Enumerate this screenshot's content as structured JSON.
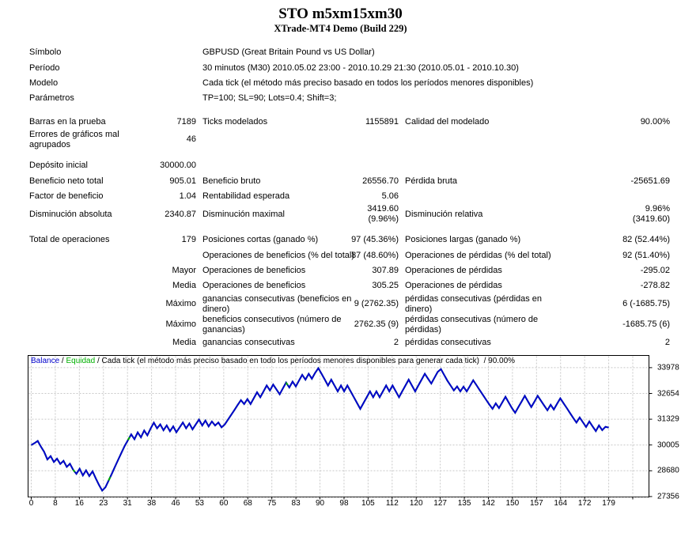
{
  "report": {
    "title": "STO m5xm15xm30",
    "subtitle": "XTrade-MT4 Demo (Build 229)"
  },
  "info_rows": [
    {
      "label": "Símbolo",
      "value": "GBPUSD (Great Britain Pound vs US Dollar)"
    },
    {
      "label": "Período",
      "value": "30 minutos (M30) 2010.05.02 23:00 - 2010.10.29 21:30 (2010.05.01 - 2010.10.30)"
    },
    {
      "label": "Modelo",
      "value": "Cada tick (el método más preciso basado en todos los períodos menores disponibles)"
    },
    {
      "label": "Parámetros",
      "value": "TP=100; SL=90; Lots=0.4; Shift=3;"
    }
  ],
  "stat_rows": [
    {
      "gap": true,
      "l1": "Barras en la prueba",
      "v1": "7189",
      "l2": "Ticks modelados",
      "v2": "1155891",
      "l3": "Calidad del modelado",
      "v3": "90.00%"
    },
    {
      "l1": "Errores de gráficos mal agrupados",
      "v1": "46"
    },
    {
      "gap": true,
      "l1": "Depósito inicial",
      "v1": "30000.00"
    },
    {
      "l1": "Beneficio neto total",
      "v1": "905.01",
      "l2": "Beneficio bruto",
      "v2": "26556.70",
      "l3": "Pérdida bruta",
      "v3": "-25651.69"
    },
    {
      "l1": "Factor de beneficio",
      "v1": "1.04",
      "l2": "Rentabilidad esperada",
      "v2": "5.06"
    },
    {
      "l1": "Disminución absoluta",
      "v1": "2340.87",
      "l2": "Disminución maximal",
      "v2": "3419.60\n(9.96%)",
      "l3": "Disminución relativa",
      "v3": "9.96%\n(3419.60)"
    },
    {
      "gap": true,
      "l1": "Total de operaciones",
      "v1": "179",
      "l2": "Posiciones cortas (ganado %)",
      "v2": "97 (45.36%)",
      "l3": "Posiciones largas (ganado %)",
      "v3": "82 (52.44%)"
    },
    {
      "l2": "Operaciones de beneficios (% del total)",
      "v2": "87 (48.60%)",
      "l3": "Operaciones de pérdidas (% del total)",
      "v3": "92 (51.40%)"
    },
    {
      "v1": "Mayor",
      "l2": "Operaciones de beneficios",
      "v2": "307.89",
      "l3": "Operaciones de pérdidas",
      "v3": "-295.02"
    },
    {
      "v1": "Media",
      "l2": "Operaciones de beneficios",
      "v2": "305.25",
      "l3": "Operaciones de pérdidas",
      "v3": "-278.82"
    },
    {
      "v1": "Máximo",
      "l2": "ganancias consecutivas (beneficios en dinero)",
      "v2": "9 (2762.35)",
      "l3": "pérdidas consecutivas (pérdidas en dinero)",
      "v3": "6 (-1685.75)"
    },
    {
      "v1": "Máximo",
      "l2": "beneficios consecutivos (número de ganancias)",
      "v2": "2762.35 (9)",
      "l3": "pérdidas consecutivas (número de pérdidas)",
      "v3": "-1685.75 (6)"
    },
    {
      "v1": "Media",
      "l2": "ganancias consecutivas",
      "v2": "2",
      "l3": "pérdidas consecutivas",
      "v3": "2"
    }
  ],
  "legend": {
    "balance": "Balance",
    "sep": " / ",
    "equity": "Equidad",
    "desc": "Cada tick (el método más preciso basado en todo los períodos menores disponibles para generar cada tick)",
    "sep2": "  / ",
    "quality": "90.00%"
  },
  "colors": {
    "balance_line": "#0000CC",
    "equity_line": "#00A800",
    "grid": "#C8C8C8",
    "axis": "#000000"
  },
  "chart_data": {
    "type": "line",
    "title": "",
    "xlabel": "",
    "ylabel": "",
    "legend_position": "top-left inside plot",
    "grid": "dashed",
    "x_ticks": [
      0,
      8,
      16,
      23,
      31,
      38,
      46,
      53,
      60,
      68,
      75,
      83,
      90,
      98,
      105,
      112,
      120,
      127,
      135,
      142,
      150,
      157,
      164,
      172,
      179
    ],
    "y_ticks": [
      27356,
      28680,
      30005,
      31329,
      32654,
      33978
    ],
    "ylim": [
      27356,
      34630
    ],
    "xlim": [
      0,
      192
    ],
    "series": [
      {
        "name": "Balance",
        "x_step": 1,
        "values": [
          30000,
          30100,
          30210,
          29920,
          29650,
          29260,
          29430,
          29130,
          29300,
          29030,
          29190,
          28880,
          29040,
          28730,
          28520,
          28780,
          28440,
          28700,
          28410,
          28650,
          28290,
          27950,
          27660,
          27830,
          28180,
          28540,
          28900,
          29260,
          29620,
          29970,
          30260,
          30550,
          30300,
          30650,
          30400,
          30750,
          30500,
          30850,
          31150,
          30860,
          31060,
          30760,
          31010,
          30710,
          30960,
          30660,
          30910,
          31160,
          30860,
          31110,
          30810,
          31060,
          31310,
          31010,
          31260,
          30960,
          31210,
          31010,
          31160,
          30910,
          31060,
          31310,
          31560,
          31810,
          32060,
          32310,
          32110,
          32360,
          32110,
          32410,
          32710,
          32460,
          32760,
          33060,
          32810,
          33110,
          32860,
          32610,
          32910,
          33210,
          32960,
          33260,
          33010,
          33310,
          33610,
          33360,
          33660,
          33410,
          33710,
          33950,
          33660,
          33360,
          33060,
          33360,
          33060,
          32760,
          33060,
          32760,
          33060,
          32760,
          32460,
          32160,
          31860,
          32160,
          32460,
          32760,
          32460,
          32760,
          32460,
          32760,
          33060,
          32760,
          33060,
          32760,
          32460,
          32760,
          33060,
          33360,
          33060,
          32760,
          33060,
          33360,
          33660,
          33410,
          33160,
          33460,
          33760,
          33900,
          33600,
          33310,
          33060,
          32810,
          33010,
          32760,
          33000,
          32760,
          33040,
          33330,
          33080,
          32830,
          32580,
          32330,
          32080,
          31860,
          32140,
          31900,
          32190,
          32480,
          32190,
          31900,
          31660,
          31950,
          32240,
          32530,
          32240,
          31950,
          32240,
          32530,
          32280,
          32030,
          31790,
          32070,
          31830,
          32120,
          32400,
          32150,
          31900,
          31650,
          31400,
          31160,
          31420,
          31170,
          30930,
          31210,
          30960,
          30720,
          31010,
          30770,
          30940,
          30900
        ]
      },
      {
        "name": "Equidad",
        "note": "coincide con la línea de Balance; visible sólo en pequeños tramos",
        "visible_marks_at_trades": [
          13,
          24,
          30,
          79
        ]
      }
    ]
  }
}
